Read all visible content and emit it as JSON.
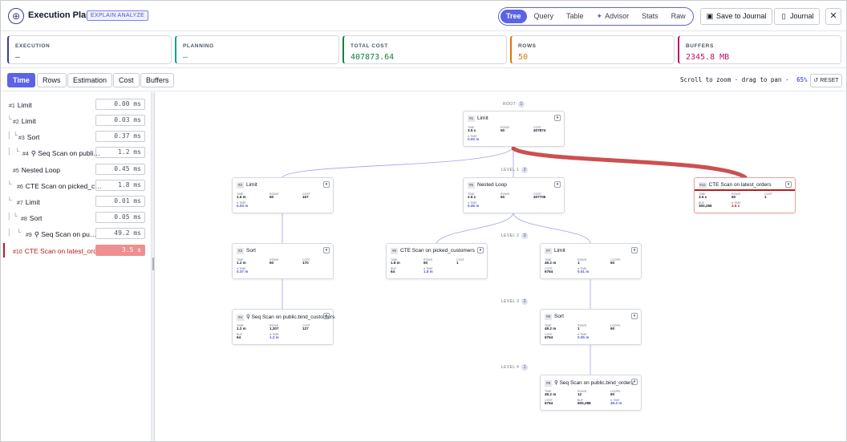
{
  "header": {
    "title": "Execution Plan",
    "badge": "EXPLAIN ANALYZE",
    "tabs": [
      "Tree",
      "Query",
      "Table",
      "Advisor",
      "Stats",
      "Raw"
    ],
    "active_tab": "Tree",
    "save_label": "Save to Journal",
    "journal_label": "Journal",
    "close": "✕"
  },
  "summary": [
    {
      "label": "EXECUTION",
      "value": "–",
      "color": "#3b3f8f"
    },
    {
      "label": "PLANNING",
      "value": "–",
      "color": "#0f9f8f"
    },
    {
      "label": "TOTAL COST",
      "value": "407873.64",
      "color": "#15803d"
    },
    {
      "label": "ROWS",
      "value": "50",
      "color": "#d97706"
    },
    {
      "label": "BUFFERS",
      "value": "2345.8 MB",
      "color": "#b5176b"
    }
  ],
  "metric_tabs": [
    "Time",
    "Rows",
    "Estimation",
    "Cost",
    "Buffers"
  ],
  "active_metric": "Time",
  "zoom": {
    "hint": "Scroll to zoom · drag to pan ·",
    "level": "65%",
    "reset": "RESET"
  },
  "sidebar": [
    {
      "num": "#1",
      "name": "Limit",
      "ms": "0.00 ms"
    },
    {
      "num": "#2",
      "name": "Limit",
      "ms": "0.03 ms"
    },
    {
      "num": "#3",
      "name": "Sort",
      "ms": "0.37 ms"
    },
    {
      "num": "#4",
      "name": "Seq Scan on publi…",
      "ms": "1.2 ms"
    },
    {
      "num": "#5",
      "name": "Nested Loop",
      "ms": "0.45 ms"
    },
    {
      "num": "#6",
      "name": "CTE Scan on picked_c…",
      "ms": "1.8 ms"
    },
    {
      "num": "#7",
      "name": "Limit",
      "ms": "0.01 ms"
    },
    {
      "num": "#8",
      "name": "Sort",
      "ms": "0.05 ms"
    },
    {
      "num": "#9",
      "name": "Seq Scan on pu…",
      "ms": "49.2 ms"
    },
    {
      "num": "#10",
      "name": "CTE Scan on latest_ord…",
      "ms": "3.5 s"
    }
  ],
  "levels": [
    {
      "label": "ROOT",
      "n": "1"
    },
    {
      "label": "LEVEL 1",
      "n": "2"
    },
    {
      "label": "LEVEL 2",
      "n": "3"
    },
    {
      "label": "LEVEL 3",
      "n": "2"
    },
    {
      "label": "LEVEL 4",
      "n": "1"
    }
  ],
  "nodes": [
    {
      "id": "#1",
      "name": "Limit",
      "s": [
        [
          "TIME",
          "3.5 s"
        ],
        [
          "ROWS",
          "50"
        ],
        [
          "COST",
          "407874"
        ]
      ],
      "b": [
        [
          "● TIME",
          "0.00 m"
        ]
      ]
    },
    {
      "id": "#2",
      "name": "Limit",
      "s": [
        [
          "TIME",
          "1.6 m"
        ],
        [
          "ROWS",
          "60"
        ],
        [
          "COST",
          "167"
        ]
      ],
      "b": [
        [
          "● TIME",
          "0.03 m"
        ]
      ]
    },
    {
      "id": "#5",
      "name": "Nested Loop",
      "s": [
        [
          "TIME",
          "2.6 s"
        ],
        [
          "ROWS",
          "60"
        ],
        [
          "COST",
          "407705"
        ]
      ],
      "b": [
        [
          "● TIME",
          "0.45 m"
        ]
      ]
    },
    {
      "id": "#10",
      "name": "CTE Scan on latest_orders",
      "s": [
        [
          "TIME",
          "3.5 s"
        ],
        [
          "ROWS",
          "60"
        ],
        [
          "COST",
          "1"
        ]
      ],
      "b": [
        [
          "BUF",
          "300,256"
        ],
        [
          "● TIME",
          "3.5 s"
        ]
      ]
    },
    {
      "id": "#3",
      "name": "Sort",
      "s": [
        [
          "TIME",
          "1.2 m"
        ],
        [
          "ROWS",
          "60"
        ],
        [
          "COST",
          "170"
        ]
      ],
      "b": [
        [
          "● TIME",
          "0.37 m"
        ]
      ]
    },
    {
      "id": "#6",
      "name": "CTE Scan on picked_customers",
      "s": [
        [
          "TIME",
          "1.8 m"
        ],
        [
          "ROWS",
          "60"
        ],
        [
          "COST",
          "1"
        ]
      ],
      "b": [
        [
          "BUF",
          "64"
        ],
        [
          "● TIME",
          "1.8 m"
        ]
      ]
    },
    {
      "id": "#7",
      "name": "Limit",
      "s": [
        [
          "TIME",
          "49.2 m"
        ],
        [
          "ROWS",
          "1"
        ],
        [
          "LOOPS",
          "60"
        ]
      ],
      "b": [
        [
          "COST",
          "6764"
        ],
        [
          "● TIME",
          "0.01 m"
        ]
      ]
    },
    {
      "id": "#4",
      "name": "Seq Scan on public.bind_customers",
      "s": [
        [
          "TIME",
          "1.2 m"
        ],
        [
          "ROWS",
          "1,207"
        ],
        [
          "COST",
          "127"
        ]
      ],
      "b": [
        [
          "BUF",
          "64"
        ],
        [
          "● TIME",
          "1.2 m"
        ]
      ]
    },
    {
      "id": "#8",
      "name": "Sort",
      "s": [
        [
          "TIME",
          "49.2 m"
        ],
        [
          "ROWS",
          "1"
        ],
        [
          "LOOPS",
          "60"
        ]
      ],
      "b": [
        [
          "COST",
          "6764"
        ],
        [
          "● TIME",
          "0.05 m"
        ]
      ]
    },
    {
      "id": "#9",
      "name": "Seq Scan on public.bind_orders",
      "s": [
        [
          "TIME",
          "49.2 m"
        ],
        [
          "ROWS",
          "12"
        ],
        [
          "LOOPS",
          "60"
        ]
      ],
      "b": [
        [
          "COST",
          "6764"
        ],
        [
          "BUF",
          "600,288"
        ],
        [
          "● TIME",
          "49.2 m"
        ]
      ]
    }
  ]
}
